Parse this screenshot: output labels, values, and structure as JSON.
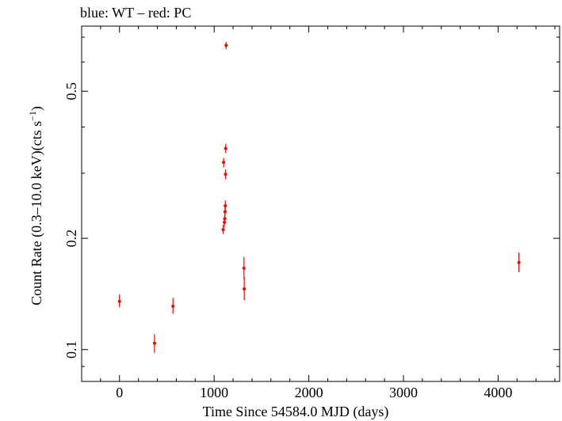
{
  "chart_data": {
    "type": "scatter",
    "title": "blue: WT – red: PC",
    "xlabel": "Time Since 54584.0 MJD (days)",
    "ylabel_main": "Count Rate (0.3–10.0 keV)(cts s",
    "ylabel_sup": "−1",
    "ylabel_end": ")",
    "xscale": "linear",
    "yscale": "log",
    "xlim": [
      -400,
      4650
    ],
    "ylim": [
      0.082,
      0.75
    ],
    "xticks": [
      0,
      1000,
      2000,
      3000,
      4000
    ],
    "xtick_labels": [
      "0",
      "1000",
      "2000",
      "3000",
      "4000"
    ],
    "yticks": [
      0.1,
      0.2,
      0.5
    ],
    "ytick_labels": [
      "0.1",
      "0.2",
      "0.5"
    ],
    "grid": false,
    "series": [
      {
        "color": "#ff0000",
        "points": [
          {
            "x": 0,
            "y": 0.135,
            "ylo": 0.13,
            "yhi": 0.141
          },
          {
            "x": 370,
            "y": 0.104,
            "ylo": 0.098,
            "yhi": 0.11
          },
          {
            "x": 565,
            "y": 0.131,
            "ylo": 0.125,
            "yhi": 0.138
          },
          {
            "x": 1095,
            "y": 0.211,
            "ylo": 0.205,
            "yhi": 0.218
          },
          {
            "x": 1100,
            "y": 0.321,
            "ylo": 0.311,
            "yhi": 0.33
          },
          {
            "x": 1108,
            "y": 0.221,
            "ylo": 0.214,
            "yhi": 0.228
          },
          {
            "x": 1112,
            "y": 0.226,
            "ylo": 0.219,
            "yhi": 0.233
          },
          {
            "x": 1115,
            "y": 0.236,
            "ylo": 0.229,
            "yhi": 0.243
          },
          {
            "x": 1118,
            "y": 0.245,
            "ylo": 0.237,
            "yhi": 0.253
          },
          {
            "x": 1120,
            "y": 0.298,
            "ylo": 0.289,
            "yhi": 0.307
          },
          {
            "x": 1122,
            "y": 0.35,
            "ylo": 0.34,
            "yhi": 0.36
          },
          {
            "x": 1126,
            "y": 0.665,
            "ylo": 0.65,
            "yhi": 0.68
          },
          {
            "x": 1315,
            "y": 0.166,
            "ylo": 0.155,
            "yhi": 0.178
          },
          {
            "x": 1318,
            "y": 0.146,
            "ylo": 0.136,
            "yhi": 0.157
          },
          {
            "x": 4220,
            "y": 0.172,
            "ylo": 0.162,
            "yhi": 0.183
          }
        ]
      }
    ]
  }
}
